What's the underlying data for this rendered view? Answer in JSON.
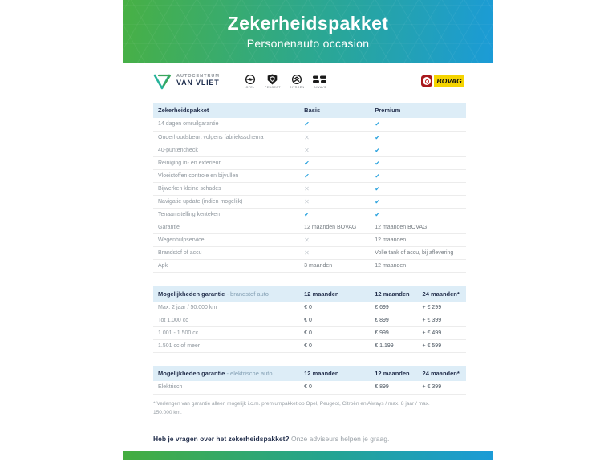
{
  "banner": {
    "title": "Zekerheidspakket",
    "subtitle": "Personenauto occasion"
  },
  "logos": {
    "dealer_top": "AUTOCENTRUM",
    "dealer_bottom": "VAN VLIET",
    "brands": [
      "OPEL",
      "PEUGEOT",
      "CITROËN",
      "AIWAYS"
    ],
    "bovag_label": "BOVAG"
  },
  "colors": {
    "gradient_green": "#48b044",
    "gradient_blue": "#1b9bd7",
    "header_row_bg": "#ddedf7",
    "heading_text": "#25314e",
    "check": "#2aa2de",
    "cross": "#c4cad0",
    "bovag_red": "#a8181c",
    "bovag_yellow": "#f5d400"
  },
  "package_table": {
    "headers": [
      "Zekerheidspakket",
      "Basis",
      "Premium"
    ],
    "rows": [
      {
        "label": "14 dagen omruilgarantie",
        "basis": "check",
        "premium": "check"
      },
      {
        "label": "Onderhoudsbeurt volgens fabrieksschema",
        "basis": "cross",
        "premium": "check"
      },
      {
        "label": "40-puntencheck",
        "basis": "cross",
        "premium": "check"
      },
      {
        "label": "Reiniging in- en exterieur",
        "basis": "check",
        "premium": "check"
      },
      {
        "label": "Vloeistoffen controle en bijvullen",
        "basis": "check",
        "premium": "check"
      },
      {
        "label": "Bijwerken kleine schades",
        "basis": "cross",
        "premium": "check"
      },
      {
        "label": "Navigatie update (indien mogelijk)",
        "basis": "cross",
        "premium": "check"
      },
      {
        "label": "Tenaamstelling kenteken",
        "basis": "check",
        "premium": "check"
      },
      {
        "label": "Garantie",
        "basis": "12 maanden BOVAG",
        "premium": "12 maanden BOVAG"
      },
      {
        "label": "Wegenhulpservice",
        "basis": "cross",
        "premium": "12 maanden"
      },
      {
        "label": "Brandstof of accu",
        "basis": "cross",
        "premium": "Volle tank of accu, bij aflevering"
      },
      {
        "label": "Apk",
        "basis": "3 maanden",
        "premium": "12 maanden"
      }
    ]
  },
  "fuel_table": {
    "title_bold": "Mogelijkheden garantie",
    "title_light": " - brandstof auto",
    "headers": [
      "12 maanden",
      "12 maanden",
      "24 maanden*"
    ],
    "rows": [
      {
        "label": "Max. 2 jaar / 50.000 km",
        "c1": "€ 0",
        "c2": "€ 699",
        "c3": "+ € 299"
      },
      {
        "label": "Tot 1.000 cc",
        "c1": "€ 0",
        "c2": "€ 899",
        "c3": "+ € 399"
      },
      {
        "label": "1.001 - 1.500 cc",
        "c1": "€ 0",
        "c2": "€ 999",
        "c3": "+ € 499"
      },
      {
        "label": "1.501 cc of meer",
        "c1": "€ 0",
        "c2": "€ 1.199",
        "c3": "+ € 599"
      }
    ]
  },
  "electric_table": {
    "title_bold": "Mogelijkheden garantie",
    "title_light": " - elektrische auto",
    "headers": [
      "12 maanden",
      "12 maanden",
      "24 maanden*"
    ],
    "rows": [
      {
        "label": "Elektrisch",
        "c1": "€ 0",
        "c2": "€ 899",
        "c3": "+ € 399"
      }
    ]
  },
  "footnote": "* Verlengen van garantie alleen mogelijk i.c.m. premiumpakket op Opel, Peugeot, Citroën en Aiways / max. 8 jaar / max. 150.000 km.",
  "question": {
    "bold": "Heb je vragen over het zekerheidspakket?",
    "light": " Onze adviseurs helpen je graag."
  }
}
